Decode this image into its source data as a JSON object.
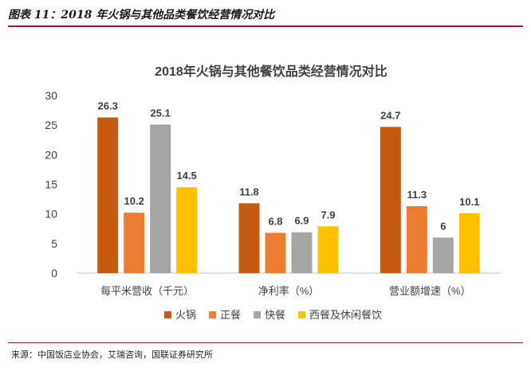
{
  "figure": {
    "caption": "图表 11：2018 年火锅与其他品类餐饮经营情况对比",
    "source": "来源：中国饭店业协会，艾瑞咨询，国联证券研究所"
  },
  "chart_data": {
    "type": "bar",
    "title": "2018年火锅与其他餐饮品类经营情况对比",
    "categories": [
      "每平米营收（千元）",
      "净利率（%）",
      "营业额增速（%）"
    ],
    "series": [
      {
        "name": "火锅",
        "color": "#c55a11",
        "values": [
          26.3,
          11.8,
          24.7
        ]
      },
      {
        "name": "正餐",
        "color": "#ed7d31",
        "values": [
          10.2,
          6.8,
          11.3
        ]
      },
      {
        "name": "快餐",
        "color": "#a5a5a5",
        "values": [
          25.1,
          6.9,
          6
        ]
      },
      {
        "name": "西餐及休闲餐饮",
        "color": "#ffc000",
        "values": [
          14.5,
          7.9,
          10.1
        ]
      }
    ],
    "ylim": [
      0,
      30
    ],
    "yticks": [
      0,
      5,
      10,
      15,
      20,
      25,
      30
    ],
    "grid": false,
    "legend": "bottom",
    "data_labels": true
  }
}
